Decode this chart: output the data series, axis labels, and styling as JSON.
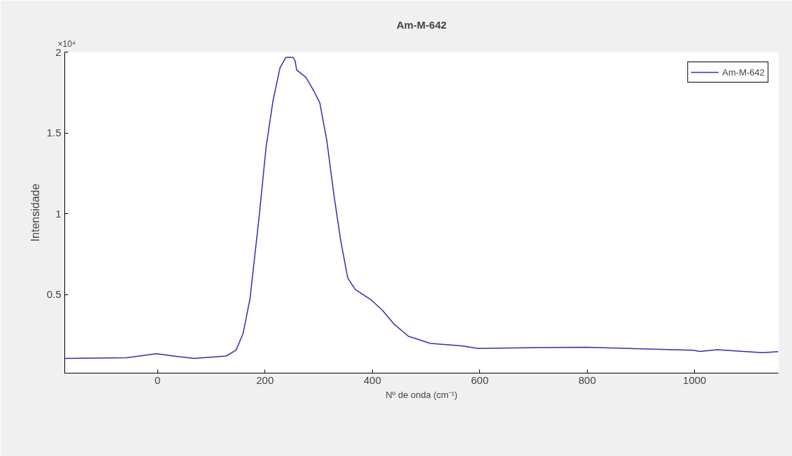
{
  "chart_data": {
    "type": "line",
    "title": "Am-M-642",
    "xlabel": "Nº de onda (cm⁻¹)",
    "ylabel": "Intensidade",
    "annotations": [
      "×10⁴"
    ],
    "xlim": [
      -173,
      1156
    ],
    "xticks": [
      0,
      200,
      400,
      600,
      800,
      1000
    ],
    "ylim": [
      0.015,
      2
    ],
    "yticks": [
      0.5,
      1,
      1.5,
      2
    ],
    "grid": false,
    "legend": "top right",
    "line_style": "solid",
    "marker": "none",
    "series": [
      {
        "name": "Am-M-642",
        "color": "#2e2eb0",
        "x": [
          -173,
          -58,
          -2,
          29,
          68,
          128,
          146,
          159,
          172,
          189,
          202,
          215,
          228,
          239,
          252,
          256,
          259,
          276,
          291,
          302,
          315,
          328,
          341,
          354,
          368,
          398,
          419,
          441,
          467,
          508,
          566,
          597,
          687,
          799,
          912,
          997,
          1010,
          1042,
          1091,
          1127,
          1156
        ],
        "values": [
          0.106,
          0.11,
          0.135,
          0.121,
          0.106,
          0.121,
          0.157,
          0.258,
          0.474,
          0.98,
          1.412,
          1.701,
          1.903,
          1.968,
          1.968,
          1.946,
          1.889,
          1.845,
          1.759,
          1.687,
          1.456,
          1.124,
          0.835,
          0.604,
          0.532,
          0.467,
          0.402,
          0.316,
          0.243,
          0.199,
          0.184,
          0.167,
          0.172,
          0.175,
          0.164,
          0.157,
          0.149,
          0.16,
          0.149,
          0.142,
          0.148
        ]
      }
    ]
  }
}
